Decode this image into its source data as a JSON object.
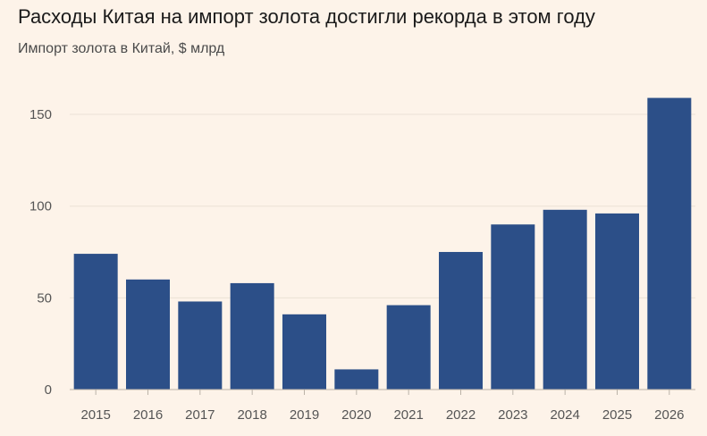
{
  "chart_data": {
    "type": "bar",
    "title": "Расходы Китая на импорт золота достигли рекорда в этом году",
    "subtitle": "Импорт золота в Китай, $ млрд",
    "categories": [
      "2015",
      "2016",
      "2017",
      "2018",
      "2019",
      "2020",
      "2021",
      "2022",
      "2023",
      "2024",
      "2025",
      "2026"
    ],
    "values": [
      74,
      60,
      48,
      58,
      41,
      11,
      46,
      75,
      90,
      98,
      96,
      159
    ],
    "yticks": [
      0,
      50,
      100,
      150
    ],
    "ylim": [
      0,
      160
    ],
    "grid": true,
    "bar_color": "#2c4f88",
    "grid_color": "#ece2d6",
    "axis_color": "#bbb3a8"
  }
}
